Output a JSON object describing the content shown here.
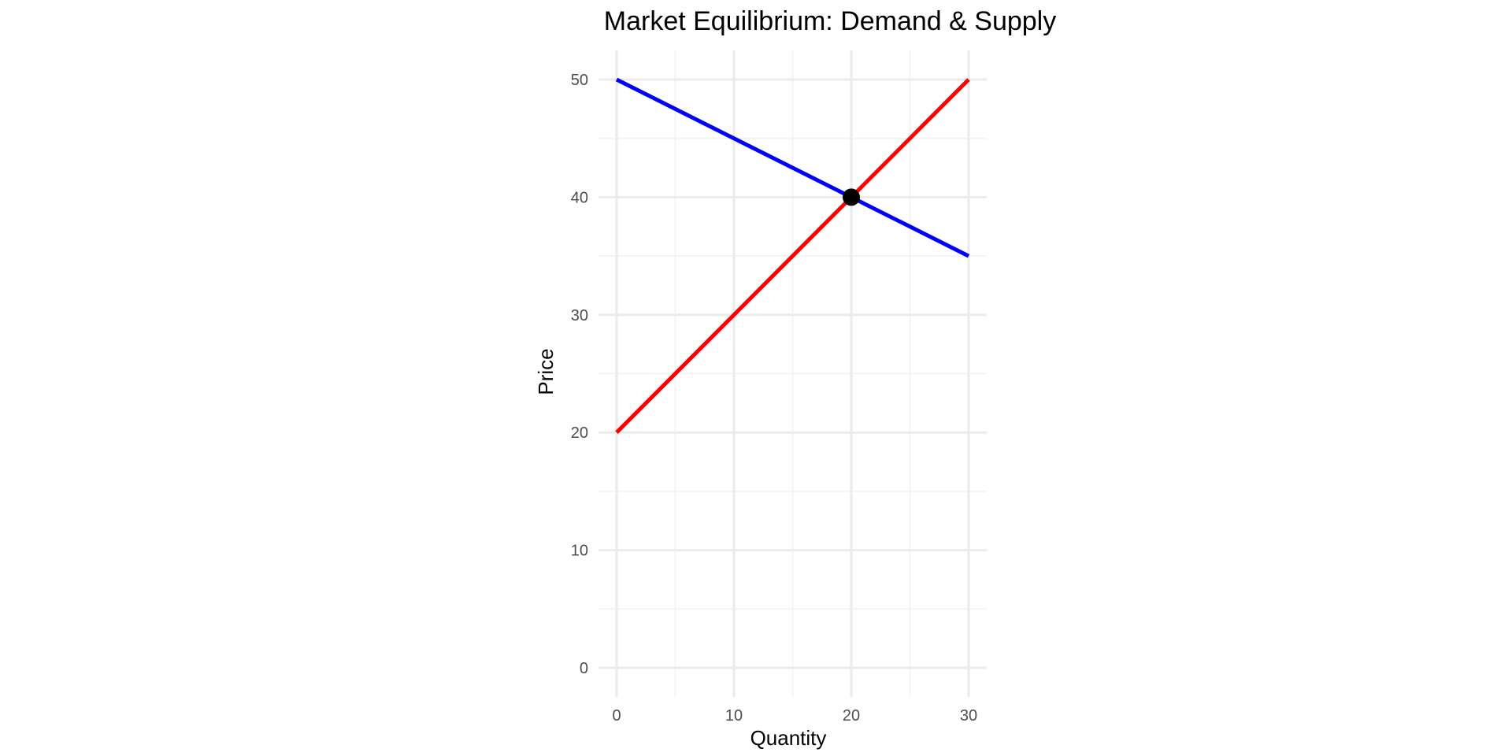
{
  "chart_data": {
    "type": "line",
    "title": "Market Equilibrium: Demand & Supply",
    "xlabel": "Quantity",
    "ylabel": "Price",
    "xlim": [
      0,
      30
    ],
    "ylim": [
      0,
      50
    ],
    "x_major_ticks": [
      0,
      10,
      20,
      30
    ],
    "x_minor_ticks": [
      5,
      15,
      25
    ],
    "y_major_ticks": [
      0,
      10,
      20,
      30,
      40,
      50
    ],
    "y_minor_ticks": [
      5,
      15,
      25,
      35,
      45
    ],
    "x_tick_labels": [
      "0",
      "10",
      "20",
      "30"
    ],
    "y_tick_labels": [
      "0",
      "10",
      "20",
      "30",
      "40",
      "50"
    ],
    "grid": true,
    "legend": "none",
    "series": [
      {
        "color": "#0000ff",
        "points": [
          {
            "x": 0,
            "y": 50
          },
          {
            "x": 30,
            "y": 35
          }
        ]
      },
      {
        "color": "#ff0000",
        "points": [
          {
            "x": 0,
            "y": 20
          },
          {
            "x": 30,
            "y": 50
          }
        ]
      }
    ],
    "annotations": [
      {
        "type": "point",
        "x": 20,
        "y": 40,
        "color": "#000000"
      }
    ],
    "grid_major_color": "#ebebeb",
    "grid_minor_color": "#f2f2f2"
  }
}
